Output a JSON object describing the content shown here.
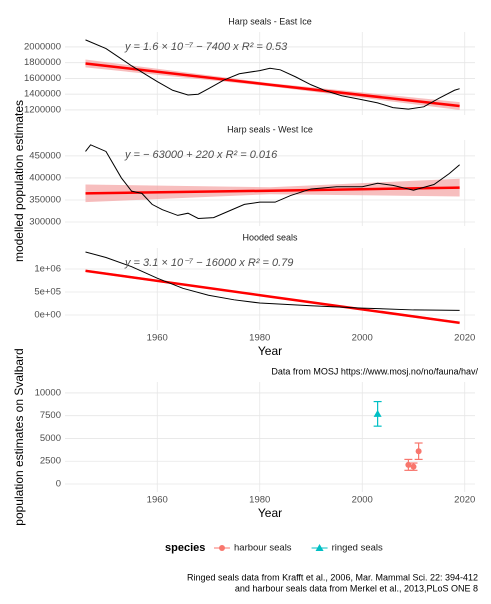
{
  "chart_data": [
    {
      "type": "line",
      "title": "Harp seals - East Ice",
      "ylabel": "modelled population estimates",
      "xlim": [
        1942,
        2022
      ],
      "xticks": [
        1960,
        1980,
        2000,
        2020
      ],
      "xtick_labels": false,
      "ylim": [
        1136000,
        2190000
      ],
      "yticks": [
        1200000,
        1400000,
        1600000,
        1800000,
        2000000
      ],
      "grid": true,
      "x": [
        1946,
        1950,
        1955,
        1958,
        1960,
        1963,
        1966,
        1968,
        1970,
        1973,
        1976,
        1980,
        1982,
        1984,
        1987,
        1990,
        1993,
        1996,
        2000,
        2003,
        2006,
        2009,
        2012,
        2015,
        2018,
        2019
      ],
      "values": [
        2090000,
        1980000,
        1760000,
        1640000,
        1560000,
        1450000,
        1390000,
        1400000,
        1470000,
        1580000,
        1660000,
        1700000,
        1730000,
        1710000,
        1620000,
        1520000,
        1440000,
        1380000,
        1330000,
        1290000,
        1230000,
        1210000,
        1240000,
        1350000,
        1450000,
        1470000
      ],
      "color": "#000000",
      "fit": {
        "x": [
          1946,
          1982,
          2019
        ],
        "values": [
          1790000,
          1520000,
          1250000
        ],
        "lower": [
          1740000,
          1500000,
          1200000
        ],
        "upper": [
          1840000,
          1540000,
          1300000
        ],
        "color": "#ff0000",
        "band_color": "#f4a3a3"
      },
      "annotation": "y = 1.6 × 10⁻⁷ − 7400 x    R² = 0.53",
      "annotation_color": "#b00000"
    },
    {
      "type": "line",
      "title": "Harp seals - West Ice",
      "xlim": [
        1942,
        2022
      ],
      "xticks": [
        1960,
        1980,
        2000,
        2020
      ],
      "xtick_labels": false,
      "ylim": [
        291000,
        486000
      ],
      "yticks": [
        300000,
        350000,
        400000,
        450000
      ],
      "grid": true,
      "x": [
        1946,
        1947,
        1950,
        1953,
        1955,
        1957,
        1959,
        1961,
        1964,
        1966,
        1968,
        1971,
        1974,
        1977,
        1980,
        1983,
        1986,
        1990,
        1995,
        2000,
        2003,
        2006,
        2010,
        2014,
        2017,
        2019
      ],
      "values": [
        460000,
        475000,
        460000,
        400000,
        370000,
        365000,
        340000,
        328000,
        315000,
        320000,
        308000,
        310000,
        325000,
        340000,
        345000,
        345000,
        360000,
        375000,
        380000,
        380000,
        388000,
        383000,
        372000,
        385000,
        410000,
        430000
      ],
      "color": "#000000",
      "fit": {
        "x": [
          1946,
          1982,
          2019
        ],
        "values": [
          365000,
          371000,
          378000
        ],
        "lower": [
          345000,
          363000,
          358000
        ],
        "upper": [
          385000,
          379000,
          398000
        ],
        "color": "#ff0000",
        "band_color": "#f4a3a3"
      },
      "annotation": "y = − 63000 + 220 x    R² = 0.016",
      "annotation_color": "#b00000"
    },
    {
      "type": "line",
      "title": "Hooded seals",
      "xlabel": "Year",
      "note": "Data from MOSJ https://www.mosj.no/no/fauna/hav/",
      "xlim": [
        1942,
        2022
      ],
      "xticks": [
        1960,
        1980,
        2000,
        2020
      ],
      "xtick_labels": true,
      "ylim": [
        -326000,
        1456000
      ],
      "yticks": [
        {
          "value": 0,
          "label": "0e+00"
        },
        {
          "value": 500000,
          "label": "5e+05"
        },
        {
          "value": 1000000,
          "label": "1e+06"
        }
      ],
      "grid": true,
      "x": [
        1946,
        1950,
        1955,
        1960,
        1965,
        1970,
        1975,
        1980,
        1990,
        2000,
        2010,
        2019
      ],
      "values": [
        1370000,
        1250000,
        1050000,
        800000,
        580000,
        430000,
        330000,
        260000,
        200000,
        150000,
        110000,
        100000
      ],
      "color": "#000000",
      "fit": {
        "x": [
          1946,
          1982,
          2019
        ],
        "values": [
          960000,
          400000,
          -170000
        ],
        "lower": [
          930000,
          385000,
          -200000
        ],
        "upper": [
          990000,
          415000,
          -140000
        ],
        "color": "#ff0000",
        "band_color": "#f4a3a3"
      },
      "annotation": "y = 3.1 × 10⁻⁷ − 16000 x    R² = 0.79",
      "annotation_color": "#b00000"
    },
    {
      "type": "scatter",
      "ylabel": "population estimates on Svalbard",
      "xlabel": "Year",
      "legend_title": "species",
      "note": [
        "Ringed seals data from Krafft et al., 2006, Mar. Mammal Sci. 22: 394-412",
        "and harbour seals data from Merkel et al., 2013,PLoS ONE 8"
      ],
      "xlim": [
        1942,
        2022
      ],
      "xticks": [
        1960,
        1980,
        2000,
        2020
      ],
      "xtick_labels": true,
      "ylim": [
        -880,
        11200
      ],
      "yticks": [
        0,
        2500,
        5000,
        7500,
        10000
      ],
      "grid": true,
      "series": [
        {
          "name": "harbour seals",
          "color": "#F8766D",
          "shape": "circle",
          "x": [
            2009,
            2010,
            2011
          ],
          "values": [
            2100,
            1900,
            3600
          ],
          "errors": [
            600,
            400,
            900
          ]
        },
        {
          "name": "ringed seals",
          "color": "#00BFC4",
          "shape": "triangle",
          "x": [
            2003
          ],
          "values": [
            7700
          ],
          "errors": [
            1350
          ]
        }
      ]
    }
  ]
}
